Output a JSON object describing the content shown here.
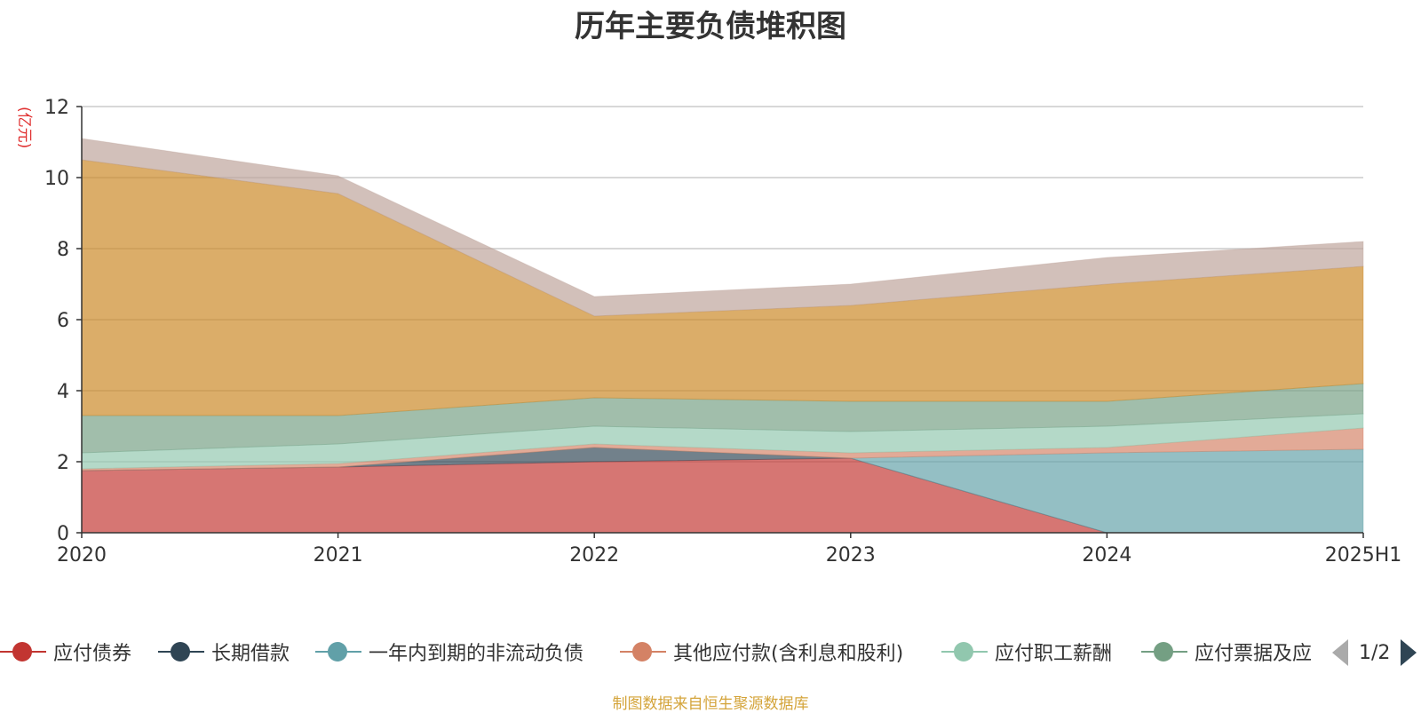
{
  "chart_data": {
    "type": "area",
    "stacked": true,
    "title": "历年主要负债堆积图",
    "ylabel": "(亿元)",
    "ylim": [
      0,
      12
    ],
    "yticks": [
      0,
      2,
      4,
      6,
      8,
      10,
      12
    ],
    "categories": [
      "2020",
      "2021",
      "2022",
      "2023",
      "2024",
      "2025H1"
    ],
    "grid": true,
    "legend_position": "bottom",
    "series": [
      {
        "name": "应付债券",
        "color": "#c23531",
        "values": [
          1.75,
          1.85,
          2.0,
          2.1,
          0.0,
          0.0
        ]
      },
      {
        "name": "长期借款",
        "color": "#2f4554",
        "values": [
          0.0,
          0.0,
          0.4,
          0.0,
          0.0,
          0.0
        ]
      },
      {
        "name": "一年内到期的非流动负债",
        "color": "#61a0a8",
        "values": [
          0.0,
          0.0,
          0.0,
          0.0,
          2.25,
          2.35
        ]
      },
      {
        "name": "其他应付款(含利息和股利)",
        "color": "#d48265",
        "values": [
          0.05,
          0.1,
          0.1,
          0.15,
          0.15,
          0.6
        ]
      },
      {
        "name": "应付职工薪酬",
        "color": "#91c7ae",
        "values": [
          0.45,
          0.55,
          0.5,
          0.6,
          0.6,
          0.4
        ]
      },
      {
        "name": "应付票据及应付账款",
        "color": "#749f83",
        "values": [
          1.05,
          0.8,
          0.8,
          0.85,
          0.7,
          0.85
        ]
      },
      {
        "name": "",
        "color": "#ca8622",
        "values": [
          7.2,
          6.25,
          2.3,
          2.7,
          3.3,
          3.3
        ]
      },
      {
        "name": "",
        "color": "#bda29a",
        "values": [
          0.6,
          0.5,
          0.55,
          0.6,
          0.75,
          0.7
        ]
      }
    ]
  },
  "legend": {
    "items": [
      {
        "label": "应付债券",
        "color": "#c23531"
      },
      {
        "label": "长期借款",
        "color": "#2f4554"
      },
      {
        "label": "一年内到期的非流动负债",
        "color": "#61a0a8"
      },
      {
        "label": "其他应付款(含利息和股利)",
        "color": "#d48265"
      },
      {
        "label": "应付职工薪酬",
        "color": "#91c7ae"
      },
      {
        "label": "应付票据及应",
        "color": "#749f83"
      }
    ],
    "page": "1/2",
    "prev_icon": "arrow-left-icon",
    "next_icon": "arrow-right-icon"
  },
  "source_note": "制图数据来自恒生聚源数据库"
}
